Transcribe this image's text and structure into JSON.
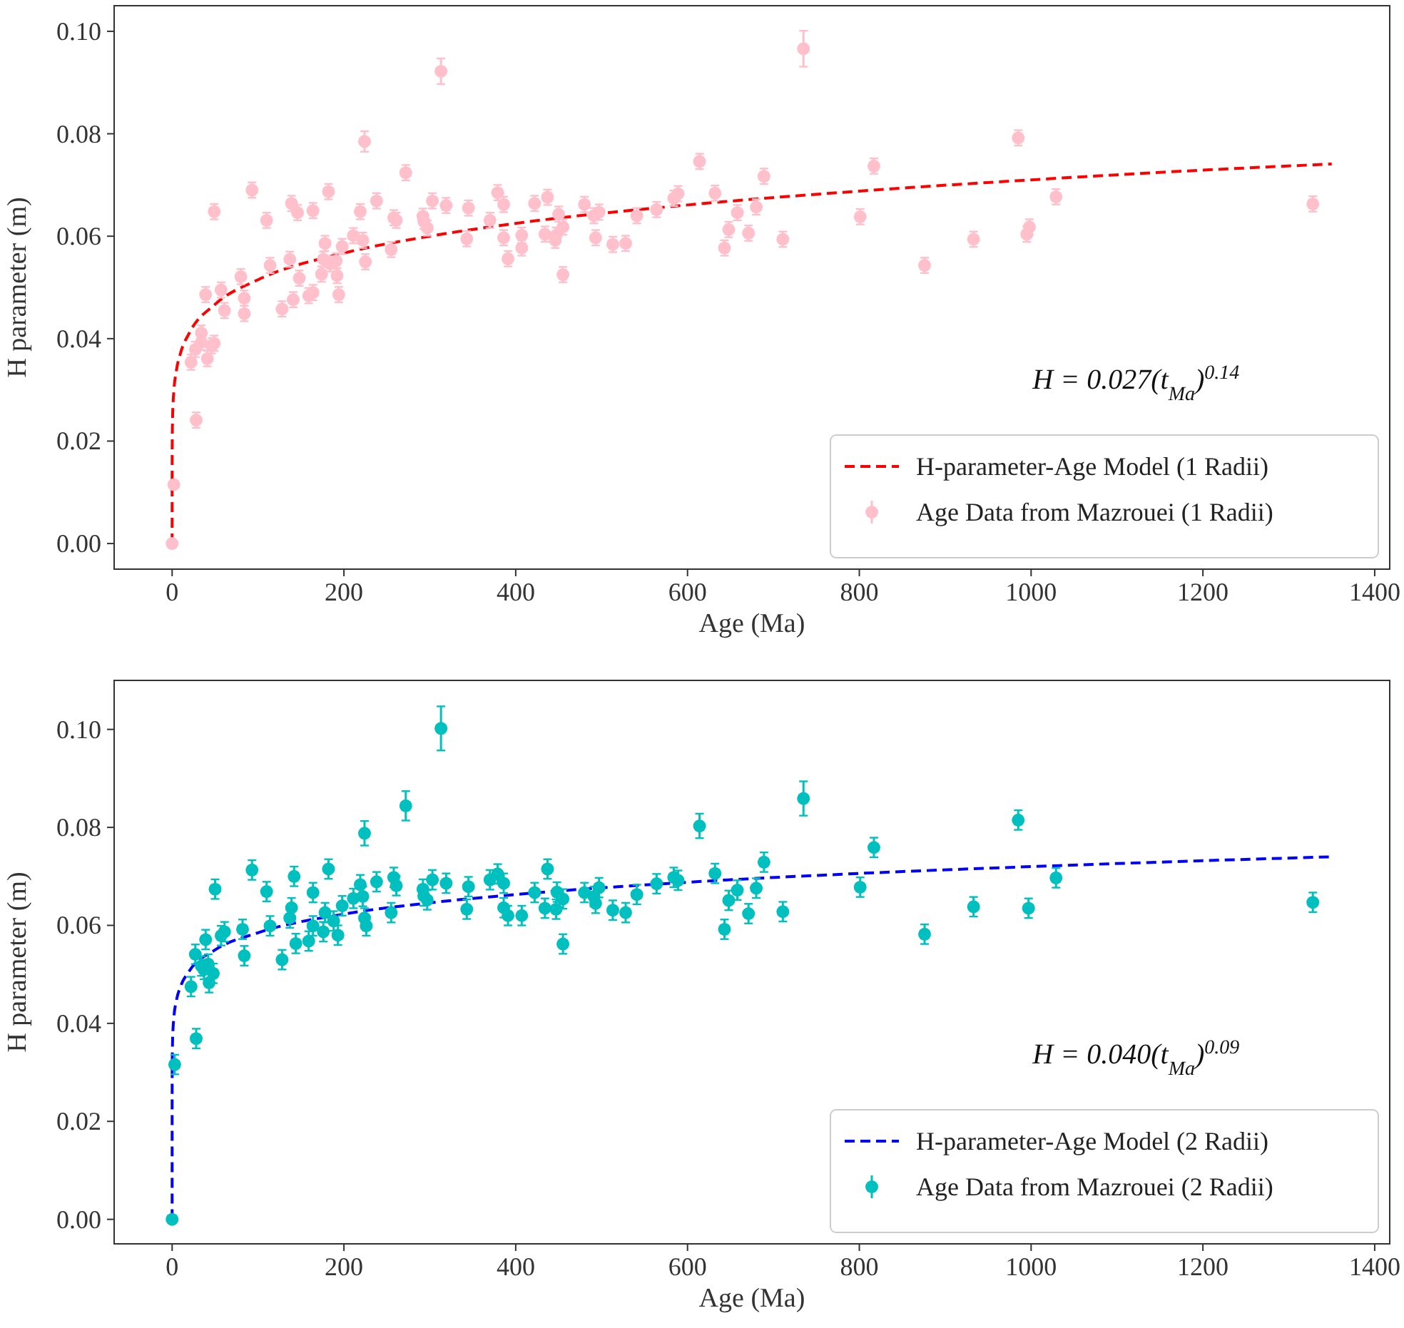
{
  "chart_data": [
    {
      "type": "scatter",
      "xlabel": "Age (Ma)",
      "ylabel": "H parameter (m)",
      "xlim": [
        -67.5,
        1417.5
      ],
      "ylim": [
        -0.005,
        0.105
      ],
      "xticks": [
        0,
        200,
        400,
        600,
        800,
        1000,
        1200,
        1400
      ],
      "yticks": [
        {
          "value": 0,
          "label": "0.00"
        },
        {
          "value": 0.02,
          "label": "0.02"
        },
        {
          "value": 0.04,
          "label": "0.04"
        },
        {
          "value": 0.06,
          "label": "0.06"
        },
        {
          "value": 0.08,
          "label": "0.08"
        },
        {
          "value": 0.1,
          "label": "0.10"
        }
      ],
      "grid": false,
      "legend": "bottom right",
      "annotations": [
        "H = 0.027(t$_{Ma}$)$^{0.14}$"
      ],
      "series": [
        {
          "type": "line",
          "name": "H-parameter-Age Model (1 Radii)",
          "color": "#ff0000",
          "line_style": "dashed",
          "marker": "none",
          "x": [
            0,
            0.001,
            0.01,
            0.1,
            0.5,
            1,
            2,
            5,
            10,
            20,
            50,
            100,
            200,
            300,
            400,
            600,
            800,
            1000,
            1200,
            1350
          ],
          "values": [
            0,
            0.0103,
            0.0142,
            0.0196,
            0.0245,
            0.027,
            0.0298,
            0.0338,
            0.0373,
            0.0411,
            0.0467,
            0.0515,
            0.0567,
            0.06,
            0.0625,
            0.0661,
            0.0688,
            0.071,
            0.0729,
            0.0741
          ]
        },
        {
          "name": "Age Data from Mazrouei (1 Radii)",
          "color": "#ffc0cb",
          "marker": "circle",
          "x": [
            0,
            2,
            28,
            22,
            27,
            34,
            34,
            41,
            46,
            49,
            39,
            57,
            61,
            49,
            80,
            84,
            84,
            93,
            110,
            114,
            128,
            137,
            139,
            146,
            141,
            148,
            159,
            164,
            164,
            178,
            176,
            174,
            182,
            184,
            191,
            192,
            194,
            198,
            211,
            219,
            222,
            224,
            225,
            238,
            255,
            258,
            261,
            272,
            292,
            293,
            297,
            303,
            313,
            319,
            343,
            345,
            370,
            379,
            386,
            386,
            391,
            407,
            407,
            422,
            434,
            437,
            446,
            447,
            450,
            455,
            455,
            480,
            491,
            497,
            493,
            513,
            528,
            541,
            564,
            584,
            589,
            614,
            632,
            643,
            648,
            658,
            671,
            680,
            689,
            711,
            735,
            801,
            817,
            876,
            933,
            985,
            995,
            998,
            1029,
            1328
          ],
          "values": [
            0,
            0.0115,
            0.0241,
            0.0354,
            0.0379,
            0.0393,
            0.0411,
            0.0361,
            0.0386,
            0.0391,
            0.0486,
            0.0495,
            0.0455,
            0.0648,
            0.0521,
            0.0479,
            0.0449,
            0.069,
            0.0631,
            0.0543,
            0.0458,
            0.0555,
            0.0664,
            0.0646,
            0.0476,
            0.0518,
            0.0484,
            0.049,
            0.065,
            0.0586,
            0.0555,
            0.0526,
            0.0687,
            0.0546,
            0.0552,
            0.0523,
            0.0486,
            0.058,
            0.0601,
            0.0648,
            0.0592,
            0.0785,
            0.055,
            0.0669,
            0.0574,
            0.0636,
            0.0631,
            0.0724,
            0.0639,
            0.0629,
            0.0616,
            0.0669,
            0.0922,
            0.066,
            0.0595,
            0.0655,
            0.0631,
            0.0685,
            0.0662,
            0.0597,
            0.0556,
            0.0602,
            0.0577,
            0.0664,
            0.0604,
            0.0676,
            0.0592,
            0.0602,
            0.0643,
            0.0618,
            0.0525,
            0.0662,
            0.064,
            0.0647,
            0.0597,
            0.0584,
            0.0586,
            0.064,
            0.0652,
            0.0674,
            0.0683,
            0.0746,
            0.0684,
            0.0577,
            0.0613,
            0.0646,
            0.0606,
            0.0657,
            0.0717,
            0.0594,
            0.0966,
            0.0638,
            0.0737,
            0.0543,
            0.0594,
            0.0792,
            0.0604,
            0.0618,
            0.0677,
            0.0663
          ],
          "errors": [
            null,
            null,
            0.0015,
            0.0015,
            0.0015,
            0.0015,
            0.0015,
            0.0015,
            0.0015,
            0.0015,
            0.0015,
            0.0015,
            0.0015,
            0.0015,
            0.0015,
            0.0015,
            0.0015,
            0.0015,
            0.0015,
            0.0015,
            0.0015,
            0.0015,
            0.0015,
            0.0015,
            0.0015,
            0.0015,
            0.0015,
            0.0015,
            0.0015,
            0.0015,
            0.0015,
            0.0015,
            0.0015,
            0.0015,
            0.0015,
            0.0015,
            0.0015,
            0.0015,
            0.0015,
            0.0015,
            0.0015,
            0.002,
            0.0015,
            0.0015,
            0.0015,
            0.0015,
            0.0015,
            0.0015,
            0.0015,
            0.0015,
            0.0015,
            0.0015,
            0.0025,
            0.0015,
            0.0015,
            0.0015,
            0.0015,
            0.0015,
            0.0015,
            0.0015,
            0.0015,
            0.0015,
            0.0015,
            0.0015,
            0.0015,
            0.0015,
            0.0015,
            0.0015,
            0.0015,
            0.0015,
            0.0015,
            0.0015,
            0.0015,
            0.0015,
            0.0015,
            0.0015,
            0.0015,
            0.0015,
            0.0015,
            0.0015,
            0.0015,
            0.0015,
            0.0015,
            0.0015,
            0.0015,
            0.0015,
            0.0015,
            0.0015,
            0.0015,
            0.0015,
            0.0035,
            0.0015,
            0.0015,
            0.0015,
            0.0015,
            0.0015,
            0.0015,
            0.0015,
            0.0015,
            0.0015
          ]
        }
      ]
    },
    {
      "type": "scatter",
      "xlabel": "Age (Ma)",
      "ylabel": "H parameter (m)",
      "xlim": [
        -67.5,
        1417.5
      ],
      "ylim": [
        -0.005,
        0.11
      ],
      "xticks": [
        0,
        200,
        400,
        600,
        800,
        1000,
        1200,
        1400
      ],
      "yticks": [
        {
          "value": 0,
          "label": "0.00"
        },
        {
          "value": 0.02,
          "label": "0.02"
        },
        {
          "value": 0.04,
          "label": "0.04"
        },
        {
          "value": 0.06,
          "label": "0.06"
        },
        {
          "value": 0.08,
          "label": "0.08"
        },
        {
          "value": 0.1,
          "label": "0.10"
        }
      ],
      "grid": false,
      "legend": "bottom right",
      "annotations": [
        "H = 0.040(t$_{Ma}$)$^{0.09}$"
      ],
      "series": [
        {
          "type": "line",
          "name": "H-parameter-Age Model (2 Radii)",
          "color": "#0000ff",
          "line_style": "dashed",
          "marker": "none",
          "x": [
            0,
            0.001,
            0.01,
            0.1,
            0.5,
            1,
            2,
            5,
            10,
            20,
            50,
            100,
            200,
            300,
            400,
            600,
            800,
            1000,
            1200,
            1350
          ],
          "values": [
            0,
            0.0208,
            0.0256,
            0.0315,
            0.0363,
            0.0387,
            0.0412,
            0.0447,
            0.0476,
            0.0507,
            0.055,
            0.0585,
            0.0623,
            0.0646,
            0.0663,
            0.0688,
            0.0706,
            0.072,
            0.0732,
            0.074
          ]
        },
        {
          "name": "Age Data from Mazrouei (2 Radii)",
          "color": "#00bfbf",
          "marker": "circle",
          "x": [
            0,
            3,
            28,
            22,
            27,
            34,
            37,
            42,
            43,
            48,
            39,
            50,
            57,
            61,
            82,
            84,
            93,
            110,
            114,
            128,
            137,
            139,
            142,
            144,
            159,
            164,
            164,
            178,
            176,
            182,
            188,
            193,
            198,
            211,
            219,
            222,
            224,
            224,
            226,
            238,
            255,
            258,
            261,
            272,
            292,
            293,
            297,
            303,
            313,
            319,
            343,
            345,
            370,
            379,
            386,
            386,
            391,
            407,
            422,
            434,
            437,
            448,
            447,
            455,
            455,
            480,
            491,
            493,
            497,
            513,
            528,
            541,
            564,
            584,
            589,
            614,
            632,
            643,
            648,
            658,
            671,
            680,
            689,
            711,
            735,
            801,
            817,
            876,
            933,
            985,
            997,
            1029,
            1328
          ],
          "values": [
            0,
            0.0316,
            0.0369,
            0.0475,
            0.0541,
            0.0517,
            0.051,
            0.0521,
            0.0483,
            0.0502,
            0.0571,
            0.0674,
            0.0579,
            0.0587,
            0.0592,
            0.0538,
            0.0713,
            0.0669,
            0.0599,
            0.053,
            0.0615,
            0.0636,
            0.07,
            0.0563,
            0.0568,
            0.0599,
            0.0667,
            0.0626,
            0.0587,
            0.0715,
            0.0609,
            0.058,
            0.064,
            0.0655,
            0.0683,
            0.0659,
            0.0788,
            0.0615,
            0.0599,
            0.0689,
            0.0626,
            0.0698,
            0.0681,
            0.0844,
            0.0674,
            0.066,
            0.0652,
            0.0693,
            0.1002,
            0.0686,
            0.0633,
            0.0679,
            0.0693,
            0.0705,
            0.0686,
            0.0636,
            0.062,
            0.062,
            0.0667,
            0.0635,
            0.0715,
            0.0668,
            0.0633,
            0.0654,
            0.0562,
            0.0667,
            0.0659,
            0.0645,
            0.0677,
            0.0631,
            0.0626,
            0.0663,
            0.0685,
            0.0698,
            0.0692,
            0.0803,
            0.0706,
            0.0592,
            0.0651,
            0.0672,
            0.0624,
            0.0676,
            0.0729,
            0.0628,
            0.0859,
            0.0678,
            0.0759,
            0.0582,
            0.0638,
            0.0815,
            0.0635,
            0.0697,
            0.0647
          ],
          "errors": [
            null,
            0.002,
            0.002,
            0.002,
            0.002,
            0.002,
            0.002,
            0.002,
            0.002,
            0.002,
            0.002,
            0.002,
            0.002,
            0.002,
            0.002,
            0.002,
            0.002,
            0.002,
            0.002,
            0.002,
            0.002,
            0.002,
            0.002,
            0.002,
            0.002,
            0.002,
            0.002,
            0.002,
            0.002,
            0.002,
            0.002,
            0.002,
            0.002,
            0.002,
            0.002,
            0.002,
            0.0025,
            0.002,
            0.002,
            0.002,
            0.002,
            0.002,
            0.002,
            0.003,
            0.002,
            0.002,
            0.002,
            0.002,
            0.0045,
            0.002,
            0.002,
            0.002,
            0.002,
            0.002,
            0.002,
            0.002,
            0.002,
            0.002,
            0.002,
            0.002,
            0.002,
            0.002,
            0.002,
            0.002,
            0.002,
            0.002,
            0.002,
            0.002,
            0.002,
            0.002,
            0.002,
            0.002,
            0.002,
            0.002,
            0.002,
            0.0025,
            0.002,
            0.002,
            0.002,
            0.002,
            0.002,
            0.002,
            0.002,
            0.002,
            0.0035,
            0.002,
            0.002,
            0.002,
            0.002,
            0.002,
            0.002,
            0.002,
            0.002
          ]
        }
      ]
    }
  ]
}
